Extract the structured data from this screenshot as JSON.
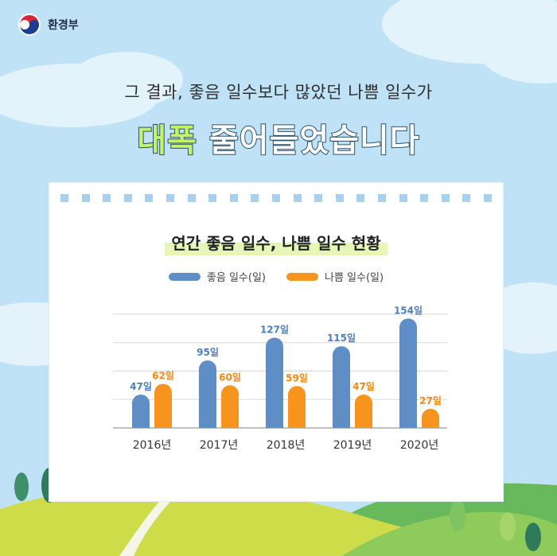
{
  "brand": {
    "name": "환경부"
  },
  "headline": {
    "subtitle": "그 결과, 좋음 일수보다 많았던 나쁨 일수가",
    "title_accent": "대폭",
    "title_rest": " 줄어들었습니다"
  },
  "colors": {
    "good": "#5f8dc5",
    "bad": "#f7941d",
    "grid": "#d8d8d8"
  },
  "chart_data": {
    "type": "bar",
    "title": "연간 좋음 일수, 나쁨 일수 현황",
    "categories": [
      "2016년",
      "2017년",
      "2018년",
      "2019년",
      "2020년"
    ],
    "series": [
      {
        "name": "좋음 일수(일)",
        "values": [
          47,
          95,
          127,
          115,
          154
        ],
        "labels": [
          "47일",
          "95일",
          "127일",
          "115일",
          "154일"
        ]
      },
      {
        "name": "나쁨 일수(일)",
        "values": [
          62,
          60,
          59,
          47,
          27
        ],
        "labels": [
          "62일",
          "60일",
          "59일",
          "47일",
          "27일"
        ]
      }
    ],
    "ylim": [
      0,
      160
    ],
    "grid": true,
    "legend_position": "top-center"
  }
}
